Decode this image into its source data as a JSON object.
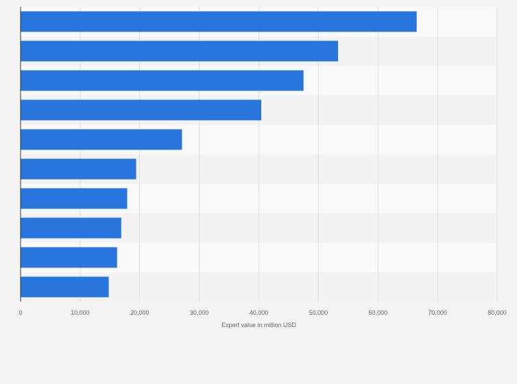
{
  "chart_data": {
    "type": "bar",
    "orientation": "horizontal",
    "title": "",
    "xlabel": "Export value in million USD",
    "ylabel": "",
    "categories": [
      "",
      "",
      "",
      "",
      "",
      "",
      "",
      "",
      "",
      ""
    ],
    "values": [
      66500,
      53300,
      47500,
      40400,
      27100,
      19400,
      17900,
      16900,
      16200,
      14800
    ],
    "xlim": [
      0,
      80000
    ],
    "xticks": [
      0,
      10000,
      20000,
      30000,
      40000,
      50000,
      60000,
      70000,
      80000
    ],
    "xtick_labels": [
      "0",
      "10,000",
      "20,000",
      "30,000",
      "40,000",
      "50,000",
      "60,000",
      "70,000",
      "80,000"
    ],
    "grid": true,
    "legend": "none",
    "colors": {
      "bar": "#2876dd",
      "band_light": "#f9f9f9",
      "band_dark": "#f3f3f3",
      "grid": "#dedede",
      "axis": "#333333",
      "text": "#666666"
    }
  }
}
